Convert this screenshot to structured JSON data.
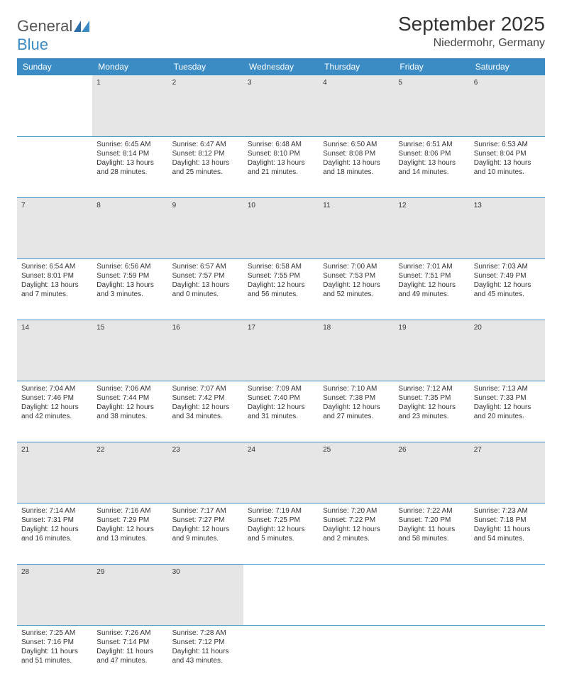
{
  "logo": {
    "text1": "General",
    "text2": "Blue"
  },
  "title": "September 2025",
  "location": "Niedermohr, Germany",
  "colors": {
    "header_bg": "#3b8bc4",
    "header_text": "#ffffff",
    "daynum_bg": "#e6e6e6",
    "border": "#3b8bc4",
    "body_text": "#333333"
  },
  "weekdays": [
    "Sunday",
    "Monday",
    "Tuesday",
    "Wednesday",
    "Thursday",
    "Friday",
    "Saturday"
  ],
  "weeks": [
    {
      "nums": [
        "",
        "1",
        "2",
        "3",
        "4",
        "5",
        "6"
      ],
      "cells": [
        [],
        [
          "Sunrise: 6:45 AM",
          "Sunset: 8:14 PM",
          "Daylight: 13 hours",
          "and 28 minutes."
        ],
        [
          "Sunrise: 6:47 AM",
          "Sunset: 8:12 PM",
          "Daylight: 13 hours",
          "and 25 minutes."
        ],
        [
          "Sunrise: 6:48 AM",
          "Sunset: 8:10 PM",
          "Daylight: 13 hours",
          "and 21 minutes."
        ],
        [
          "Sunrise: 6:50 AM",
          "Sunset: 8:08 PM",
          "Daylight: 13 hours",
          "and 18 minutes."
        ],
        [
          "Sunrise: 6:51 AM",
          "Sunset: 8:06 PM",
          "Daylight: 13 hours",
          "and 14 minutes."
        ],
        [
          "Sunrise: 6:53 AM",
          "Sunset: 8:04 PM",
          "Daylight: 13 hours",
          "and 10 minutes."
        ]
      ]
    },
    {
      "nums": [
        "7",
        "8",
        "9",
        "10",
        "11",
        "12",
        "13"
      ],
      "cells": [
        [
          "Sunrise: 6:54 AM",
          "Sunset: 8:01 PM",
          "Daylight: 13 hours",
          "and 7 minutes."
        ],
        [
          "Sunrise: 6:56 AM",
          "Sunset: 7:59 PM",
          "Daylight: 13 hours",
          "and 3 minutes."
        ],
        [
          "Sunrise: 6:57 AM",
          "Sunset: 7:57 PM",
          "Daylight: 13 hours",
          "and 0 minutes."
        ],
        [
          "Sunrise: 6:58 AM",
          "Sunset: 7:55 PM",
          "Daylight: 12 hours",
          "and 56 minutes."
        ],
        [
          "Sunrise: 7:00 AM",
          "Sunset: 7:53 PM",
          "Daylight: 12 hours",
          "and 52 minutes."
        ],
        [
          "Sunrise: 7:01 AM",
          "Sunset: 7:51 PM",
          "Daylight: 12 hours",
          "and 49 minutes."
        ],
        [
          "Sunrise: 7:03 AM",
          "Sunset: 7:49 PM",
          "Daylight: 12 hours",
          "and 45 minutes."
        ]
      ]
    },
    {
      "nums": [
        "14",
        "15",
        "16",
        "17",
        "18",
        "19",
        "20"
      ],
      "cells": [
        [
          "Sunrise: 7:04 AM",
          "Sunset: 7:46 PM",
          "Daylight: 12 hours",
          "and 42 minutes."
        ],
        [
          "Sunrise: 7:06 AM",
          "Sunset: 7:44 PM",
          "Daylight: 12 hours",
          "and 38 minutes."
        ],
        [
          "Sunrise: 7:07 AM",
          "Sunset: 7:42 PM",
          "Daylight: 12 hours",
          "and 34 minutes."
        ],
        [
          "Sunrise: 7:09 AM",
          "Sunset: 7:40 PM",
          "Daylight: 12 hours",
          "and 31 minutes."
        ],
        [
          "Sunrise: 7:10 AM",
          "Sunset: 7:38 PM",
          "Daylight: 12 hours",
          "and 27 minutes."
        ],
        [
          "Sunrise: 7:12 AM",
          "Sunset: 7:35 PM",
          "Daylight: 12 hours",
          "and 23 minutes."
        ],
        [
          "Sunrise: 7:13 AM",
          "Sunset: 7:33 PM",
          "Daylight: 12 hours",
          "and 20 minutes."
        ]
      ]
    },
    {
      "nums": [
        "21",
        "22",
        "23",
        "24",
        "25",
        "26",
        "27"
      ],
      "cells": [
        [
          "Sunrise: 7:14 AM",
          "Sunset: 7:31 PM",
          "Daylight: 12 hours",
          "and 16 minutes."
        ],
        [
          "Sunrise: 7:16 AM",
          "Sunset: 7:29 PM",
          "Daylight: 12 hours",
          "and 13 minutes."
        ],
        [
          "Sunrise: 7:17 AM",
          "Sunset: 7:27 PM",
          "Daylight: 12 hours",
          "and 9 minutes."
        ],
        [
          "Sunrise: 7:19 AM",
          "Sunset: 7:25 PM",
          "Daylight: 12 hours",
          "and 5 minutes."
        ],
        [
          "Sunrise: 7:20 AM",
          "Sunset: 7:22 PM",
          "Daylight: 12 hours",
          "and 2 minutes."
        ],
        [
          "Sunrise: 7:22 AM",
          "Sunset: 7:20 PM",
          "Daylight: 11 hours",
          "and 58 minutes."
        ],
        [
          "Sunrise: 7:23 AM",
          "Sunset: 7:18 PM",
          "Daylight: 11 hours",
          "and 54 minutes."
        ]
      ]
    },
    {
      "nums": [
        "28",
        "29",
        "30",
        "",
        "",
        "",
        ""
      ],
      "cells": [
        [
          "Sunrise: 7:25 AM",
          "Sunset: 7:16 PM",
          "Daylight: 11 hours",
          "and 51 minutes."
        ],
        [
          "Sunrise: 7:26 AM",
          "Sunset: 7:14 PM",
          "Daylight: 11 hours",
          "and 47 minutes."
        ],
        [
          "Sunrise: 7:28 AM",
          "Sunset: 7:12 PM",
          "Daylight: 11 hours",
          "and 43 minutes."
        ],
        [],
        [],
        [],
        []
      ]
    }
  ]
}
